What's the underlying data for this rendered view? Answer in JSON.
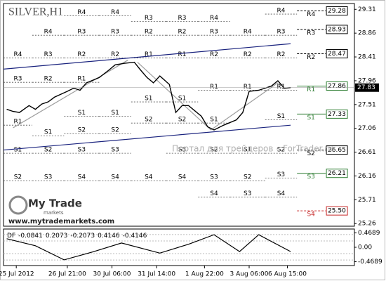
{
  "chart_data": {
    "type": "line",
    "title": "SILVER,H1",
    "watermark": "Портал для трейдеров – ForTrader.ru",
    "logo": {
      "brand": "My Trade",
      "sub": "markets",
      "url": "www.mytrademarkets.com"
    },
    "color": "#000000",
    "x": [
      1,
      3,
      5,
      8,
      10,
      12,
      14,
      16,
      20,
      22,
      24,
      26,
      30,
      33,
      35,
      38,
      41,
      43,
      45,
      47,
      49,
      52,
      54,
      56,
      58,
      62,
      64,
      66,
      69,
      73,
      75,
      77,
      80,
      84,
      86,
      88,
      90
    ],
    "values": [
      27.42,
      27.38,
      27.36,
      27.49,
      27.42,
      27.52,
      27.56,
      27.65,
      27.76,
      27.82,
      27.78,
      27.92,
      28.02,
      28.16,
      28.26,
      28.29,
      28.31,
      28.16,
      28.02,
      27.92,
      28.05,
      27.89,
      27.36,
      27.49,
      27.49,
      27.29,
      27.09,
      27.03,
      27.12,
      27.22,
      27.36,
      27.76,
      27.78,
      27.86,
      27.96,
      27.82,
      27.83
    ],
    "last_price": 27.83,
    "xlim": [
      0,
      110
    ],
    "ylim": [
      25.21,
      29.42
    ],
    "yticks": [
      29.31,
      28.86,
      28.41,
      27.96,
      27.51,
      27.06,
      26.61,
      26.16,
      25.71,
      25.26
    ],
    "xticks": [
      {
        "value": 4,
        "label": "25 Jul 2012"
      },
      {
        "value": 20,
        "label": "26 Jul 21:00"
      },
      {
        "value": 34,
        "label": "30 Jul 06:00"
      },
      {
        "value": 48,
        "label": "31 Jul 14:00"
      },
      {
        "value": 63,
        "label": "1 Aug 22:00"
      },
      {
        "value": 77,
        "label": "3 Aug 06:00"
      },
      {
        "value": 89,
        "label": "6 Aug 15:00"
      }
    ],
    "channels": [
      {
        "color": "#1a237e",
        "x": [
          0,
          90
        ],
        "values": [
          28.18,
          28.66
        ]
      },
      {
        "color": "#1a237e",
        "x": [
          0,
          90
        ],
        "values": [
          26.65,
          27.12
        ]
      },
      {
        "color": "#9e9e9e",
        "x": [
          3,
          39
        ],
        "values": [
          27.07,
          28.35
        ]
      },
      {
        "color": "#9e9e9e",
        "x": [
          42,
          65
        ],
        "values": [
          28.31,
          27.03
        ]
      },
      {
        "color": "#9e9e9e",
        "x": [
          65,
          86
        ],
        "values": [
          27.03,
          27.92
        ]
      }
    ],
    "pivots": [
      {
        "start": 0,
        "end": 9,
        "levels": [
          {
            "name": "R4",
            "value": 28.39
          },
          {
            "name": "R3",
            "value": 27.93
          },
          {
            "name": "R1",
            "value": 27.12
          },
          {
            "name": "S1",
            "value": 26.59
          },
          {
            "name": "S2",
            "value": 26.07
          }
        ]
      },
      {
        "start": 9,
        "end": 19,
        "levels": [
          {
            "name": "R4",
            "value": 28.82
          },
          {
            "name": "R3",
            "value": 28.39
          },
          {
            "name": "R2",
            "value": 27.93
          },
          {
            "name": "S1",
            "value": 26.92
          },
          {
            "name": "S2",
            "value": 26.59
          },
          {
            "name": "S3",
            "value": 26.07
          }
        ]
      },
      {
        "start": 19,
        "end": 30,
        "levels": [
          {
            "name": "R4",
            "value": 29.19
          },
          {
            "name": "R3",
            "value": 28.82
          },
          {
            "name": "R2",
            "value": 28.39
          },
          {
            "name": "R1",
            "value": 27.93
          },
          {
            "name": "S1",
            "value": 27.29
          },
          {
            "name": "S2",
            "value": 26.96
          },
          {
            "name": "S3",
            "value": 26.59
          },
          {
            "name": "S4",
            "value": 26.07
          }
        ]
      },
      {
        "start": 30,
        "end": 40,
        "levels": [
          {
            "name": "R4",
            "value": 29.19
          },
          {
            "name": "R3",
            "value": 28.82
          },
          {
            "name": "R2",
            "value": 28.39
          },
          {
            "name": "S1",
            "value": 27.29
          },
          {
            "name": "S2",
            "value": 26.96
          },
          {
            "name": "S3",
            "value": 26.59
          },
          {
            "name": "S4",
            "value": 26.07
          }
        ]
      },
      {
        "start": 40,
        "end": 51,
        "levels": [
          {
            "name": "R3",
            "value": 29.08
          },
          {
            "name": "R2",
            "value": 28.82
          },
          {
            "name": "R1",
            "value": 28.39
          },
          {
            "name": "S1",
            "value": 27.56
          },
          {
            "name": "S2",
            "value": 27.16
          },
          {
            "name": "S4",
            "value": 26.07
          }
        ]
      },
      {
        "start": 51,
        "end": 61,
        "levels": [
          {
            "name": "R3",
            "value": 29.08
          },
          {
            "name": "R2",
            "value": 28.82
          },
          {
            "name": "R1",
            "value": 28.39
          },
          {
            "name": "S1",
            "value": 27.56
          },
          {
            "name": "S2",
            "value": 27.16
          },
          {
            "name": "S3",
            "value": 26.59
          },
          {
            "name": "S4",
            "value": 26.07
          }
        ]
      },
      {
        "start": 61,
        "end": 71,
        "levels": [
          {
            "name": "R4",
            "value": 29.08
          },
          {
            "name": "R3",
            "value": 28.82
          },
          {
            "name": "R2",
            "value": 28.39
          },
          {
            "name": "R1",
            "value": 27.78
          },
          {
            "name": "S1",
            "value": 27.16
          },
          {
            "name": "S2",
            "value": 26.59
          },
          {
            "name": "S3",
            "value": 26.07
          },
          {
            "name": "S4",
            "value": 25.76
          }
        ]
      },
      {
        "start": 71,
        "end": 82,
        "levels": [
          {
            "name": "R4",
            "value": 28.82
          },
          {
            "name": "R2",
            "value": 28.39
          },
          {
            "name": "R1",
            "value": 27.78
          },
          {
            "name": "S1",
            "value": 26.59
          },
          {
            "name": "S2",
            "value": 26.07
          },
          {
            "name": "S3",
            "value": 25.76
          }
        ]
      },
      {
        "start": 82,
        "end": 92,
        "levels": [
          {
            "name": "R4",
            "value": 29.22
          },
          {
            "name": "R3",
            "value": 28.82
          },
          {
            "name": "R2",
            "value": 28.39
          },
          {
            "name": "R1",
            "value": 27.78
          },
          {
            "name": "S1",
            "value": 27.22
          },
          {
            "name": "S2",
            "value": 26.59
          },
          {
            "name": "S3",
            "value": 26.12
          },
          {
            "name": "S4",
            "value": 25.76
          }
        ]
      }
    ],
    "final_levels": {
      "start": 92,
      "end": 101,
      "levels": [
        {
          "name": "R4",
          "value": 29.28,
          "label": "29.28",
          "color": "#000000",
          "dashed": true
        },
        {
          "name": "R3",
          "value": 28.93,
          "label": "28.93",
          "color": "#000000",
          "dashed": true
        },
        {
          "name": "R2",
          "value": 28.47,
          "label": "28.47",
          "color": "#000000",
          "dashed": true
        },
        {
          "name": "R1",
          "value": 27.86,
          "label": "27.86",
          "color": "#2e7d32",
          "dashed": false
        },
        {
          "name": "S1",
          "value": 27.33,
          "label": "27.33",
          "color": "#2e7d32",
          "dashed": false
        },
        {
          "name": "S2",
          "value": 26.65,
          "label": "26.65",
          "color": "#000000",
          "dashed": true
        },
        {
          "name": "S3",
          "value": 26.21,
          "label": "26.21",
          "color": "#2e7d32",
          "dashed": false
        },
        {
          "name": "S4",
          "value": 25.5,
          "label": "25.50",
          "color": "#c62828",
          "dashed": true
        }
      ]
    },
    "indicator": {
      "name": "DF",
      "params": [
        -0.0841,
        0.2073,
        -0.2073,
        0.4146,
        -0.4146
      ],
      "ylim": [
        -0.55,
        0.55
      ],
      "yticks": [
        0.4689,
        {
          "value": 0,
          "label": "0.00"
        },
        -0.4689
      ],
      "color": "#000000",
      "x": [
        1,
        10,
        19,
        28,
        37,
        49,
        58,
        66,
        74,
        80,
        90
      ],
      "values": [
        0.28,
        0.05,
        -0.41,
        -0.15,
        0.14,
        -0.19,
        0.1,
        0.41,
        -0.14,
        0.41,
        -0.14
      ]
    }
  }
}
